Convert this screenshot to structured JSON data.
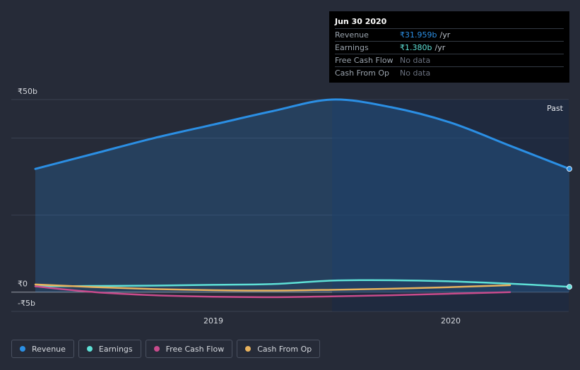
{
  "tooltip": {
    "date": "Jun 30 2020",
    "rows": [
      {
        "label": "Revenue",
        "value": "₹31.959b",
        "unit": "/yr",
        "color": "#2b8fe4"
      },
      {
        "label": "Earnings",
        "value": "₹1.380b",
        "unit": "/yr",
        "color": "#5ee0d6"
      },
      {
        "label": "Free Cash Flow",
        "value": "No data",
        "unit": "",
        "color": ""
      },
      {
        "label": "Cash From Op",
        "value": "No data",
        "unit": "",
        "color": ""
      }
    ]
  },
  "legend": [
    {
      "label": "Revenue",
      "color": "#2b8fe4"
    },
    {
      "label": "Earnings",
      "color": "#5ee0d6"
    },
    {
      "label": "Free Cash Flow",
      "color": "#c84b8c"
    },
    {
      "label": "Cash From Op",
      "color": "#e8b25d"
    }
  ],
  "chart_data": {
    "type": "area",
    "past_label": "Past",
    "y_tick_labels": [
      {
        "label": "₹50b",
        "value": 50
      },
      {
        "label": "₹0",
        "value": 0
      },
      {
        "label": "-₹5b",
        "value": -5
      }
    ],
    "ylim": [
      -5,
      50
    ],
    "x_tick_labels": [
      {
        "label": "2019",
        "value": 2019.0
      },
      {
        "label": "2020",
        "value": 2020.0
      }
    ],
    "xlim": [
      2018.16,
      2020.5
    ],
    "past_region_start": 2019.5,
    "series": [
      {
        "name": "Revenue",
        "color": "#2b8fe4",
        "filled": true,
        "x": [
          2018.25,
          2018.5,
          2018.75,
          2019.0,
          2019.25,
          2019.5,
          2019.75,
          2020.0,
          2020.25,
          2020.5
        ],
        "values": [
          32.0,
          36.0,
          40.0,
          43.5,
          47.0,
          50.0,
          48.0,
          44.0,
          38.0,
          32.0
        ]
      },
      {
        "name": "Earnings",
        "color": "#5ee0d6",
        "filled": false,
        "x": [
          2018.25,
          2018.5,
          2018.75,
          2019.0,
          2019.25,
          2019.5,
          2019.75,
          2020.0,
          2020.25,
          2020.5
        ],
        "values": [
          1.5,
          1.6,
          1.7,
          1.9,
          2.1,
          3.0,
          3.1,
          2.8,
          2.2,
          1.38
        ]
      },
      {
        "name": "Free Cash Flow",
        "color": "#c84b8c",
        "filled": false,
        "x": [
          2018.25,
          2018.5,
          2018.75,
          2019.0,
          2019.25,
          2019.5,
          2019.75,
          2020.0,
          2020.25
        ],
        "values": [
          1.5,
          0.0,
          -0.8,
          -1.2,
          -1.3,
          -1.1,
          -0.8,
          -0.4,
          0.0
        ]
      },
      {
        "name": "Cash From Op",
        "color": "#e8b25d",
        "filled": false,
        "x": [
          2018.25,
          2018.5,
          2018.75,
          2019.0,
          2019.25,
          2019.5,
          2019.75,
          2020.0,
          2020.25
        ],
        "values": [
          2.0,
          1.3,
          0.8,
          0.5,
          0.4,
          0.6,
          0.9,
          1.3,
          1.8
        ]
      }
    ]
  }
}
